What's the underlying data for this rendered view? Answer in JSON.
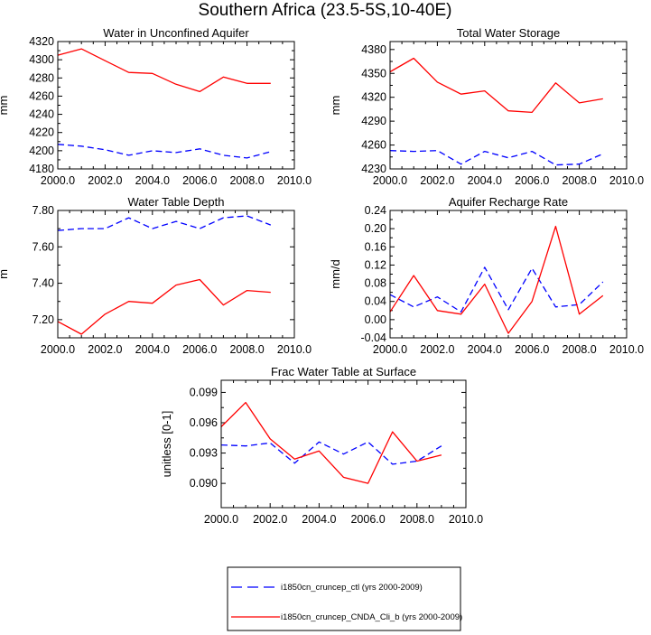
{
  "figure_title": "Southern Africa (23.5-5S,10-40E)",
  "legend": [
    {
      "label": "i1850cn_cruncep_ctl (yrs 2000-2009)",
      "color": "#0000ff",
      "dash": "dashed"
    },
    {
      "label": "i1850cn_cruncep_CNDA_Cli_b (yrs 2000-2009)",
      "color": "#ff0000",
      "dash": "solid"
    }
  ],
  "chart_data": [
    {
      "type": "line",
      "title": "Water in Unconfined Aquifer",
      "ylabel": "mm",
      "xlim": [
        2000,
        2010
      ],
      "xticks": [
        "2000.0",
        "2002.0",
        "2004.0",
        "2006.0",
        "2008.0",
        "2010.0"
      ],
      "xtick_values": [
        2000,
        2002,
        2004,
        2006,
        2008,
        2010
      ],
      "ylim": [
        4180,
        4320
      ],
      "yticks": [
        "4180",
        "4200",
        "4220",
        "4240",
        "4260",
        "4280",
        "4300",
        "4320"
      ],
      "ytick_values": [
        4180,
        4200,
        4220,
        4240,
        4260,
        4280,
        4300,
        4320
      ],
      "x": [
        2000,
        2001,
        2002,
        2003,
        2004,
        2005,
        2006,
        2007,
        2008,
        2009
      ],
      "series": [
        {
          "name": "i1850cn_cruncep_ctl (yrs 2000-2009)",
          "color": "#0000ff",
          "dash": "dashed",
          "values": [
            4207,
            4205,
            4201,
            4195,
            4200,
            4198,
            4202,
            4195,
            4192,
            4199
          ]
        },
        {
          "name": "i1850cn_cruncep_CNDA_Cli_b (yrs 2000-2009)",
          "color": "#ff0000",
          "dash": "solid",
          "values": [
            4305,
            4312,
            4299,
            4286,
            4285,
            4273,
            4265,
            4281,
            4274,
            4274
          ]
        }
      ]
    },
    {
      "type": "line",
      "title": "Total Water Storage",
      "ylabel": "mm",
      "xlim": [
        2000,
        2010
      ],
      "xticks": [
        "2000.0",
        "2002.0",
        "2004.0",
        "2006.0",
        "2008.0",
        "2010.0"
      ],
      "xtick_values": [
        2000,
        2002,
        2004,
        2006,
        2008,
        2010
      ],
      "ylim": [
        4230,
        4390
      ],
      "yticks": [
        "4230",
        "4260",
        "4290",
        "4320",
        "4350",
        "4380"
      ],
      "ytick_values": [
        4230,
        4260,
        4290,
        4320,
        4350,
        4380
      ],
      "x": [
        2000,
        2001,
        2002,
        2003,
        2004,
        2005,
        2006,
        2007,
        2008,
        2009
      ],
      "series": [
        {
          "name": "i1850cn_cruncep_ctl (yrs 2000-2009)",
          "color": "#0000ff",
          "dash": "dashed",
          "values": [
            4253,
            4252,
            4253,
            4236,
            4252,
            4244,
            4252,
            4235,
            4236,
            4249
          ]
        },
        {
          "name": "i1850cn_cruncep_CNDA_Cli_b (yrs 2000-2009)",
          "color": "#ff0000",
          "dash": "solid",
          "values": [
            4352,
            4369,
            4339,
            4324,
            4328,
            4303,
            4301,
            4338,
            4313,
            4318
          ]
        }
      ]
    },
    {
      "type": "line",
      "title": "Water Table Depth",
      "ylabel": "m",
      "xlim": [
        2000,
        2010
      ],
      "xticks": [
        "2000.0",
        "2002.0",
        "2004.0",
        "2006.0",
        "2008.0",
        "2010.0"
      ],
      "xtick_values": [
        2000,
        2002,
        2004,
        2006,
        2008,
        2010
      ],
      "ylim": [
        7.1,
        7.8
      ],
      "yticks": [
        "7.20",
        "7.40",
        "7.60",
        "7.80"
      ],
      "ytick_values": [
        7.2,
        7.4,
        7.6,
        7.8
      ],
      "x": [
        2000,
        2001,
        2002,
        2003,
        2004,
        2005,
        2006,
        2007,
        2008,
        2009
      ],
      "series": [
        {
          "name": "i1850cn_cruncep_ctl (yrs 2000-2009)",
          "color": "#0000ff",
          "dash": "dashed",
          "values": [
            7.69,
            7.7,
            7.7,
            7.76,
            7.7,
            7.74,
            7.7,
            7.76,
            7.77,
            7.72
          ]
        },
        {
          "name": "i1850cn_cruncep_CNDA_Cli_b (yrs 2000-2009)",
          "color": "#ff0000",
          "dash": "solid",
          "values": [
            7.19,
            7.12,
            7.23,
            7.3,
            7.29,
            7.39,
            7.42,
            7.28,
            7.36,
            7.35
          ]
        }
      ]
    },
    {
      "type": "line",
      "title": "Aquifer Recharge Rate",
      "ylabel": "mm/d",
      "xlim": [
        2000,
        2010
      ],
      "xticks": [
        "2000.0",
        "2002.0",
        "2004.0",
        "2006.0",
        "2008.0",
        "2010.0"
      ],
      "xtick_values": [
        2000,
        2002,
        2004,
        2006,
        2008,
        2010
      ],
      "ylim": [
        -0.04,
        0.24
      ],
      "yticks": [
        "-0.04",
        "0.00",
        "0.04",
        "0.08",
        "0.12",
        "0.16",
        "0.20",
        "0.24"
      ],
      "ytick_values": [
        -0.04,
        0.0,
        0.04,
        0.08,
        0.12,
        0.16,
        0.2,
        0.24
      ],
      "x": [
        2000,
        2001,
        2002,
        2003,
        2004,
        2005,
        2006,
        2007,
        2008,
        2009
      ],
      "series": [
        {
          "name": "i1850cn_cruncep_ctl (yrs 2000-2009)",
          "color": "#0000ff",
          "dash": "dashed",
          "values": [
            0.055,
            0.028,
            0.05,
            0.017,
            0.115,
            0.022,
            0.113,
            0.028,
            0.033,
            0.083
          ]
        },
        {
          "name": "i1850cn_cruncep_CNDA_Cli_b (yrs 2000-2009)",
          "color": "#ff0000",
          "dash": "solid",
          "values": [
            0.017,
            0.097,
            0.02,
            0.012,
            0.078,
            -0.03,
            0.04,
            0.205,
            0.012,
            0.053
          ]
        }
      ]
    },
    {
      "type": "line",
      "title": "Frac Water Table at Surface",
      "ylabel": "unitless [0-1]",
      "xlim": [
        2000,
        2010
      ],
      "xticks": [
        "2000.0",
        "2002.0",
        "2004.0",
        "2006.0",
        "2008.0",
        "2010.0"
      ],
      "xtick_values": [
        2000,
        2002,
        2004,
        2006,
        2008,
        2010
      ],
      "ylim": [
        0.0876,
        0.1002
      ],
      "yticks": [
        "0.090",
        "0.093",
        "0.096",
        "0.099"
      ],
      "ytick_values": [
        0.09,
        0.093,
        0.096,
        0.099
      ],
      "x": [
        2000,
        2001,
        2002,
        2003,
        2004,
        2005,
        2006,
        2007,
        2008,
        2009
      ],
      "series": [
        {
          "name": "i1850cn_cruncep_ctl (yrs 2000-2009)",
          "color": "#0000ff",
          "dash": "dashed",
          "values": [
            0.0938,
            0.0937,
            0.094,
            0.092,
            0.0941,
            0.0929,
            0.0941,
            0.0919,
            0.0922,
            0.0937
          ]
        },
        {
          "name": "i1850cn_cruncep_CNDA_Cli_b (yrs 2000-2009)",
          "color": "#ff0000",
          "dash": "solid",
          "values": [
            0.0956,
            0.098,
            0.0944,
            0.0924,
            0.0932,
            0.0906,
            0.09,
            0.0951,
            0.0922,
            0.0928
          ]
        }
      ]
    }
  ]
}
